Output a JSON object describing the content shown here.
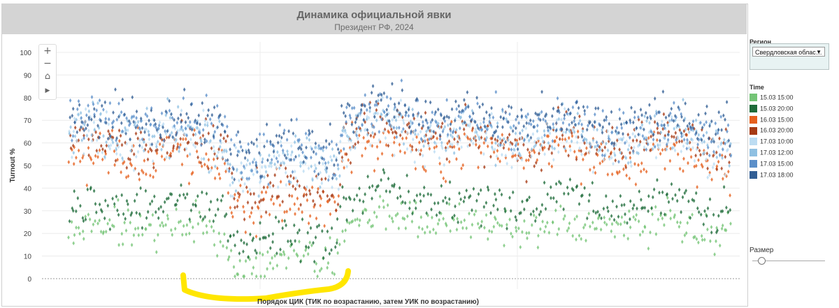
{
  "header": {
    "title": "Динамика официальной явки",
    "subtitle": "Президент РФ, 2024"
  },
  "filter": {
    "label": "Регион",
    "selected": "Свердловская облас…"
  },
  "legend": {
    "title": "Time",
    "items": [
      {
        "label": "15.03 15:00",
        "color": "#74c476"
      },
      {
        "label": "15.03 20:00",
        "color": "#1e6b3a"
      },
      {
        "label": "16.03 15:00",
        "color": "#e6601e"
      },
      {
        "label": "16.03 20:00",
        "color": "#a63a14"
      },
      {
        "label": "17.03 10:00",
        "color": "#bcdcf2"
      },
      {
        "label": "17.03 12:00",
        "color": "#8fc0e2"
      },
      {
        "label": "17.03 15:00",
        "color": "#5b8fc9"
      },
      {
        "label": "17.03 18:00",
        "color": "#335f95"
      }
    ]
  },
  "size_control": {
    "label": "Размер",
    "value": 0.1
  },
  "zoom_controls": {
    "zoom_in": "+",
    "zoom_out": "−",
    "home": "⌂",
    "play": "▶"
  },
  "highlight_color": "#ffe600",
  "chart_data": {
    "type": "scatter",
    "xlabel": "Порядок ЦИК (ТИК по возрастанию, затем УИК по возрастанию)",
    "ylabel": "Turnout %",
    "yticks": [
      "0",
      "10",
      "20",
      "30",
      "40",
      "50",
      "60",
      "70",
      "80",
      "90",
      "100"
    ],
    "ylim": [
      0,
      100
    ],
    "xlim": [
      0,
      1000
    ],
    "grid": true,
    "legend_position": "right",
    "segments": [
      {
        "x_range": [
          0,
          240
        ],
        "means": [
          21,
          31,
          52,
          59,
          59,
          63,
          67,
          69
        ]
      },
      {
        "x_range": [
          240,
          410
        ],
        "means": [
          10,
          18,
          35,
          40,
          49,
          53,
          56,
          58
        ]
      },
      {
        "x_range": [
          410,
          770
        ],
        "means": [
          25,
          35,
          58,
          63,
          62,
          66,
          70,
          72
        ]
      },
      {
        "x_range": [
          770,
          1000
        ],
        "means": [
          22,
          32,
          52,
          59,
          57,
          61,
          65,
          68
        ]
      }
    ],
    "spread": [
      4.5,
      4.5,
      5.5,
      5.5,
      5.5,
      5.5,
      5.5,
      5.5
    ],
    "series": [
      {
        "name": "15.03 15:00"
      },
      {
        "name": "15.03 20:00"
      },
      {
        "name": "16.03 15:00"
      },
      {
        "name": "16.03 20:00"
      },
      {
        "name": "17.03 10:00"
      },
      {
        "name": "17.03 12:00"
      },
      {
        "name": "17.03 15:00"
      },
      {
        "name": "17.03 18:00"
      }
    ]
  }
}
